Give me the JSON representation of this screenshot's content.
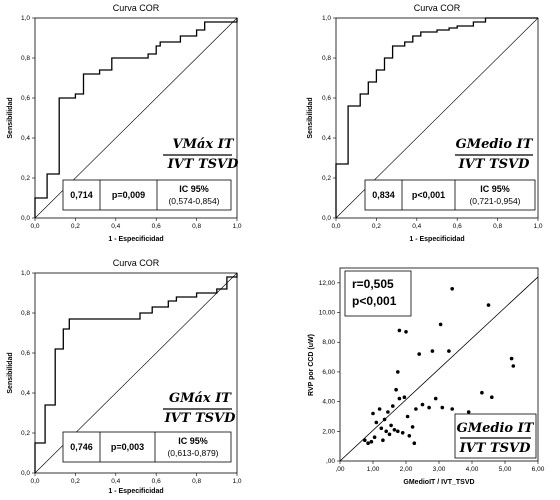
{
  "chart_data": [
    {
      "type": "line",
      "subtype": "roc",
      "title": "Curva COR",
      "xlabel": "1 - Especificidad",
      "ylabel": "Sensibilidad",
      "xlim": [
        0,
        1
      ],
      "ylim": [
        0,
        1
      ],
      "x_ticks": [
        "0,0",
        "0,2",
        "0,4",
        "0,6",
        "0,8",
        "1,0"
      ],
      "y_ticks": [
        "0,0",
        "0,2",
        "0,4",
        "0,6",
        "0,8",
        "1,0"
      ],
      "formula_top": "VMáx IT",
      "formula_bottom": "IVT TSVD",
      "stats": {
        "auc": "0,714",
        "p": "p=0,009",
        "ci_label": "IC 95%",
        "ci": "(0,574-0,854)"
      },
      "curve": [
        [
          0,
          0
        ],
        [
          0,
          0.1
        ],
        [
          0.06,
          0.1
        ],
        [
          0.06,
          0.22
        ],
        [
          0.12,
          0.22
        ],
        [
          0.12,
          0.6
        ],
        [
          0.2,
          0.6
        ],
        [
          0.2,
          0.62
        ],
        [
          0.24,
          0.62
        ],
        [
          0.24,
          0.72
        ],
        [
          0.32,
          0.72
        ],
        [
          0.32,
          0.74
        ],
        [
          0.38,
          0.74
        ],
        [
          0.38,
          0.8
        ],
        [
          0.56,
          0.8
        ],
        [
          0.56,
          0.82
        ],
        [
          0.6,
          0.82
        ],
        [
          0.6,
          0.86
        ],
        [
          0.62,
          0.86
        ],
        [
          0.62,
          0.88
        ],
        [
          0.72,
          0.88
        ],
        [
          0.72,
          0.91
        ],
        [
          0.8,
          0.91
        ],
        [
          0.8,
          0.94
        ],
        [
          0.84,
          0.94
        ],
        [
          0.84,
          0.98
        ],
        [
          1,
          0.98
        ],
        [
          1,
          1
        ]
      ]
    },
    {
      "type": "line",
      "subtype": "roc",
      "title": "Curva COR",
      "xlabel": "1 - Especificidad",
      "ylabel": "Sensibilidad",
      "xlim": [
        0,
        1
      ],
      "ylim": [
        0,
        1
      ],
      "x_ticks": [
        "0,0",
        "0,2",
        "0,4",
        "0,6",
        "0,8",
        "1,0"
      ],
      "y_ticks": [
        "0,0",
        "0,2",
        "0,4",
        "0,6",
        "0,8",
        "1,0"
      ],
      "formula_top": "GMedio IT",
      "formula_bottom": "IVT TSVD",
      "stats": {
        "auc": "0,834",
        "p": "p<0,001",
        "ci_label": "IC 95%",
        "ci": "(0,721-0,954)"
      },
      "curve": [
        [
          0,
          0
        ],
        [
          0,
          0.27
        ],
        [
          0.06,
          0.27
        ],
        [
          0.06,
          0.56
        ],
        [
          0.12,
          0.56
        ],
        [
          0.12,
          0.62
        ],
        [
          0.16,
          0.62
        ],
        [
          0.16,
          0.68
        ],
        [
          0.2,
          0.68
        ],
        [
          0.2,
          0.74
        ],
        [
          0.24,
          0.74
        ],
        [
          0.24,
          0.8
        ],
        [
          0.28,
          0.8
        ],
        [
          0.28,
          0.86
        ],
        [
          0.34,
          0.86
        ],
        [
          0.34,
          0.88
        ],
        [
          0.38,
          0.88
        ],
        [
          0.38,
          0.91
        ],
        [
          0.42,
          0.91
        ],
        [
          0.42,
          0.93
        ],
        [
          0.5,
          0.93
        ],
        [
          0.5,
          0.94
        ],
        [
          0.56,
          0.94
        ],
        [
          0.56,
          0.95
        ],
        [
          0.6,
          0.95
        ],
        [
          0.6,
          0.96
        ],
        [
          0.68,
          0.96
        ],
        [
          0.68,
          0.98
        ],
        [
          0.74,
          0.98
        ],
        [
          0.74,
          1
        ],
        [
          1,
          1
        ]
      ]
    },
    {
      "type": "line",
      "subtype": "roc",
      "title": "Curva COR",
      "xlabel": "1 - Especificidad",
      "ylabel": "Sensibilidad",
      "xlim": [
        0,
        1
      ],
      "ylim": [
        0,
        1
      ],
      "x_ticks": [
        "0,0",
        "0,2",
        "0,4",
        "0,6",
        "0,8",
        "1,0"
      ],
      "y_ticks": [
        "0,0",
        "0,2",
        "0,4",
        "0,6",
        "0,8",
        "1,0"
      ],
      "formula_top": "GMáx IT",
      "formula_bottom": "IVT TSVD",
      "stats": {
        "auc": "0,746",
        "p": "p=0,003",
        "ci_label": "IC 95%",
        "ci": "(0,613-0,879)"
      },
      "curve": [
        [
          0,
          0
        ],
        [
          0,
          0.15
        ],
        [
          0.05,
          0.15
        ],
        [
          0.05,
          0.34
        ],
        [
          0.1,
          0.34
        ],
        [
          0.1,
          0.62
        ],
        [
          0.14,
          0.62
        ],
        [
          0.14,
          0.72
        ],
        [
          0.17,
          0.72
        ],
        [
          0.17,
          0.77
        ],
        [
          0.52,
          0.77
        ],
        [
          0.52,
          0.8
        ],
        [
          0.58,
          0.8
        ],
        [
          0.58,
          0.83
        ],
        [
          0.66,
          0.83
        ],
        [
          0.66,
          0.86
        ],
        [
          0.7,
          0.86
        ],
        [
          0.7,
          0.88
        ],
        [
          0.8,
          0.88
        ],
        [
          0.8,
          0.9
        ],
        [
          0.9,
          0.9
        ],
        [
          0.9,
          0.92
        ],
        [
          0.95,
          0.92
        ],
        [
          0.95,
          0.98
        ],
        [
          1,
          0.98
        ],
        [
          1,
          1
        ]
      ]
    },
    {
      "type": "scatter",
      "xlabel": "GMedioIT / IVT_TSVD",
      "ylabel": "RVP por CCD (uW)",
      "xlim": [
        0,
        6
      ],
      "ylim": [
        0,
        13
      ],
      "x_ticks": [
        ",00",
        "1,00",
        "2,00",
        "3,00",
        "4,00",
        "5,00",
        "6,00"
      ],
      "y_ticks": [
        ",00",
        "2,00",
        "4,00",
        "6,00",
        "8,00",
        "10,00",
        "12,00"
      ],
      "stats": {
        "r": "r=0,505",
        "p": "p<0,001"
      },
      "formula_top": "GMedio IT",
      "formula_bottom": "IVT TSVD",
      "fit_line": [
        [
          0,
          0
        ],
        [
          6,
          12.4
        ]
      ],
      "points": [
        [
          0.75,
          1.4
        ],
        [
          0.85,
          1.2
        ],
        [
          0.95,
          1.3
        ],
        [
          1.05,
          1.6
        ],
        [
          1.0,
          3.2
        ],
        [
          1.1,
          2.6
        ],
        [
          1.2,
          3.5
        ],
        [
          1.25,
          2.2
        ],
        [
          1.3,
          1.4
        ],
        [
          1.35,
          2.8
        ],
        [
          1.4,
          2.0
        ],
        [
          1.45,
          3.3
        ],
        [
          1.5,
          1.8
        ],
        [
          1.55,
          2.4
        ],
        [
          1.6,
          3.7
        ],
        [
          1.65,
          2.1
        ],
        [
          1.7,
          4.8
        ],
        [
          1.75,
          6.0
        ],
        [
          1.75,
          2.0
        ],
        [
          1.8,
          4.2
        ],
        [
          1.8,
          8.8
        ],
        [
          1.9,
          1.9
        ],
        [
          1.95,
          4.3
        ],
        [
          2.0,
          8.7
        ],
        [
          2.05,
          3.0
        ],
        [
          2.1,
          1.7
        ],
        [
          2.2,
          2.3
        ],
        [
          2.25,
          1.2
        ],
        [
          2.3,
          3.5
        ],
        [
          2.4,
          7.2
        ],
        [
          2.5,
          3.8
        ],
        [
          2.7,
          3.6
        ],
        [
          2.8,
          7.4
        ],
        [
          2.9,
          4.2
        ],
        [
          3.05,
          9.2
        ],
        [
          3.1,
          3.6
        ],
        [
          3.3,
          7.4
        ],
        [
          3.4,
          11.6
        ],
        [
          3.4,
          3.5
        ],
        [
          3.9,
          3.3
        ],
        [
          4.3,
          4.6
        ],
        [
          4.5,
          10.5
        ],
        [
          4.6,
          4.3
        ],
        [
          5.2,
          6.9
        ],
        [
          5.25,
          6.4
        ]
      ]
    }
  ]
}
